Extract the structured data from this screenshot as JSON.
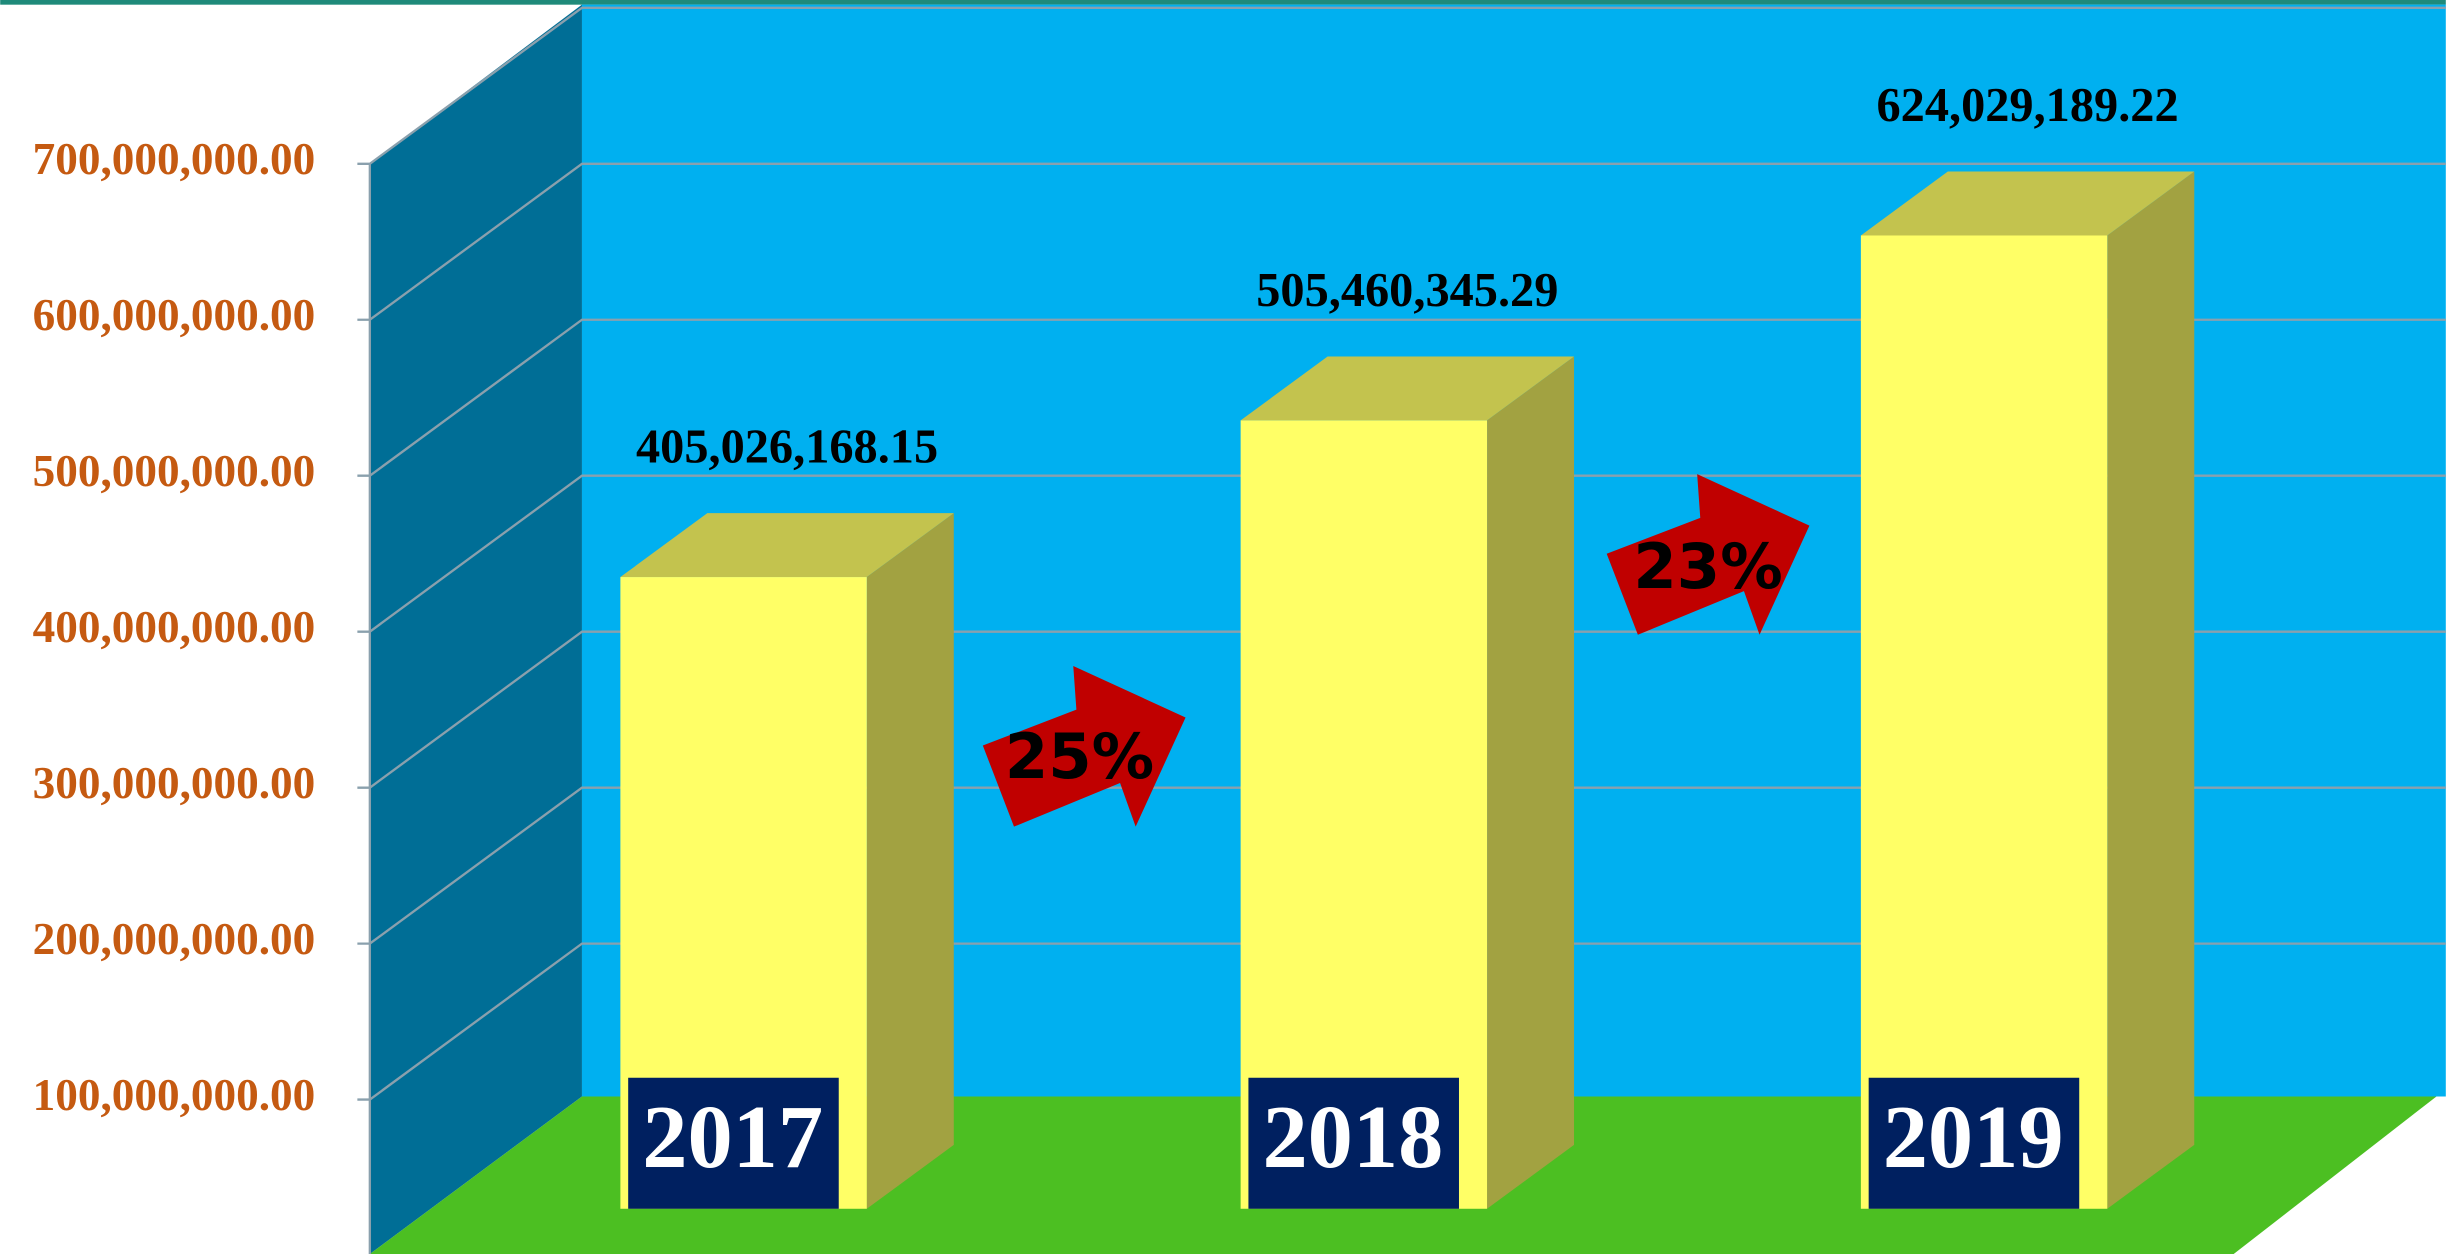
{
  "chart_data": {
    "type": "bar3d",
    "categories": [
      "2017",
      "2018",
      "2019"
    ],
    "values": [
      405026168.15,
      505460345.29,
      624029189.22
    ],
    "value_labels": [
      "405,026,168.15",
      "505,460,345.29",
      "624,029,189.22"
    ],
    "ylim": [
      0,
      700000000
    ],
    "yticks": [
      {
        "value": 100000000,
        "label": "100,000,000.00"
      },
      {
        "value": 200000000,
        "label": "200,000,000.00"
      },
      {
        "value": 300000000,
        "label": "300,000,000.00"
      },
      {
        "value": 400000000,
        "label": "400,000,000.00"
      },
      {
        "value": 500000000,
        "label": "500,000,000.00"
      },
      {
        "value": 600000000,
        "label": "600,000,000.00"
      },
      {
        "value": 700000000,
        "label": "700,000,000.00"
      }
    ],
    "grid": true,
    "color": "#ffff66",
    "annotations": [
      "25%",
      "23%"
    ]
  }
}
